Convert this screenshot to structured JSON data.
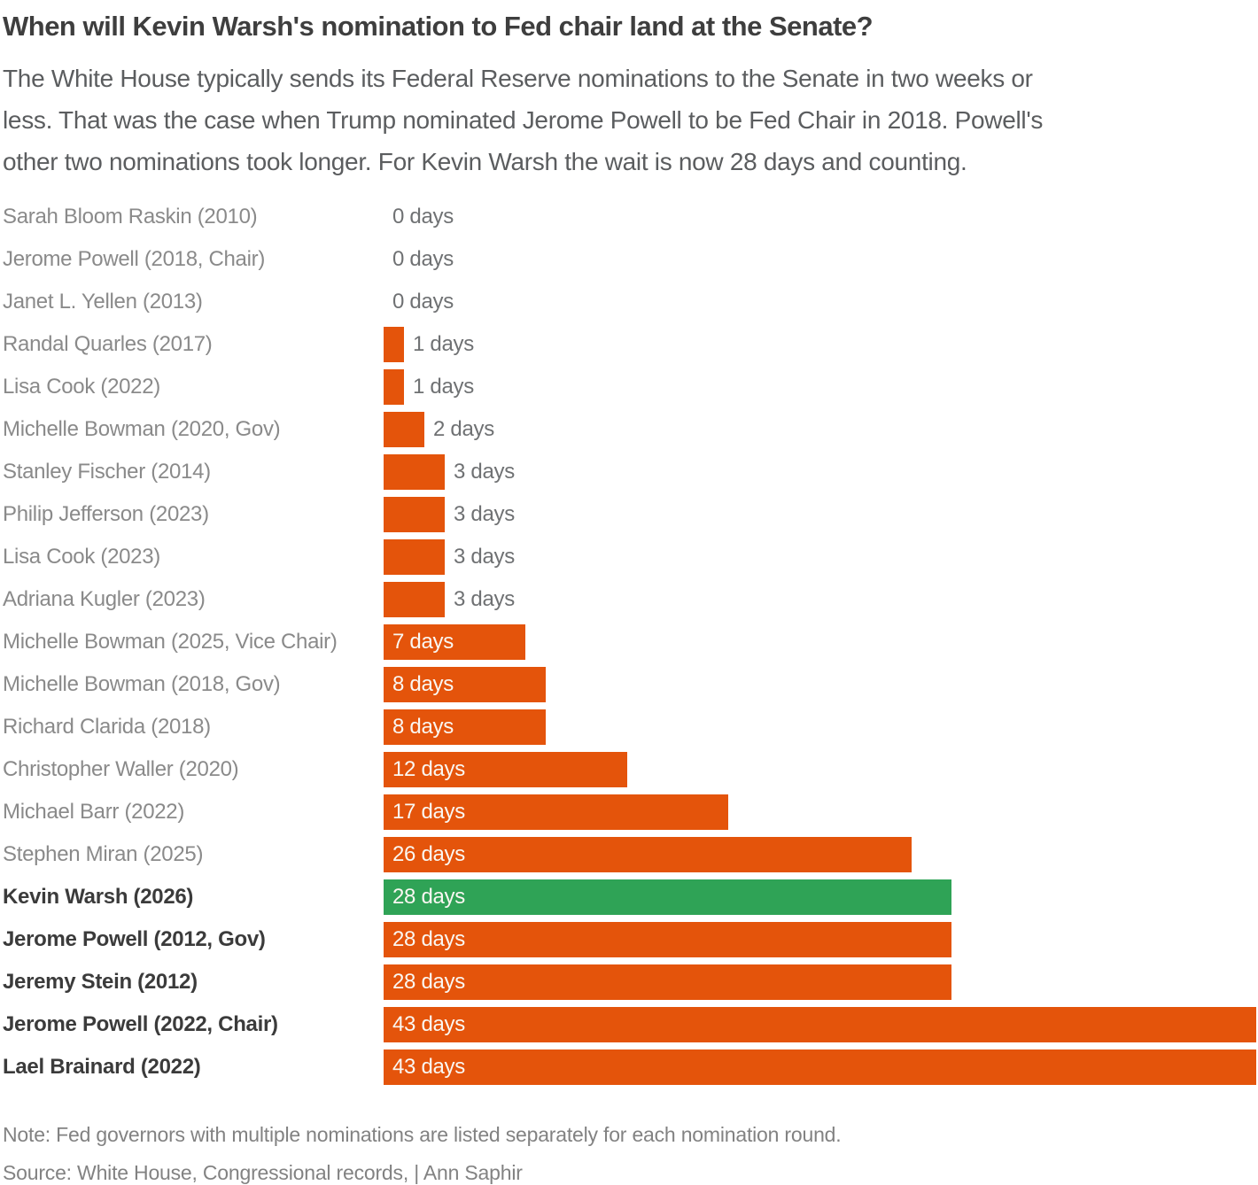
{
  "header": {
    "title": "When will Kevin Warsh's nomination to Fed chair land at the Senate?",
    "subtitle_lines": [
      "The White House typically sends its Federal Reserve nominations to the Senate in two weeks or",
      "less. That was the case when Trump nominated Jerome Powell to be Fed Chair in 2018. Powell's",
      "other two nominations took longer. For Kevin Warsh the wait is now 28 days and counting."
    ]
  },
  "chart_data": {
    "type": "bar",
    "orientation": "horizontal",
    "title": "When will Kevin Warsh's nomination to Fed chair land at the Senate?",
    "xlabel": "",
    "ylabel": "",
    "unit": "days",
    "xlim": [
      0,
      43
    ],
    "grid": false,
    "legend": "none",
    "colors": {
      "default": "#e4540b",
      "highlight": "#2fa356"
    },
    "inside_label_min_days": 7,
    "categories": [
      "Sarah Bloom Raskin (2010)",
      "Jerome Powell (2018, Chair)",
      "Janet L. Yellen (2013)",
      "Randal Quarles (2017)",
      "Lisa Cook (2022)",
      "Michelle Bowman (2020, Gov)",
      "Stanley Fischer (2014)",
      "Philip Jefferson (2023)",
      "Lisa Cook (2023)",
      "Adriana Kugler (2023)",
      "Michelle Bowman (2025, Vice Chair)",
      "Michelle Bowman (2018, Gov)",
      "Richard Clarida (2018)",
      "Christopher Waller (2020)",
      "Michael Barr (2022)",
      "Stephen Miran (2025)",
      "Kevin Warsh (2026)",
      "Jerome Powell (2012, Gov)",
      "Jeremy Stein (2012)",
      "Jerome Powell (2022, Chair)",
      "Lael Brainard (2022)"
    ],
    "values": [
      0,
      0,
      0,
      1,
      1,
      2,
      3,
      3,
      3,
      3,
      7,
      8,
      8,
      12,
      17,
      26,
      28,
      28,
      28,
      43,
      43
    ],
    "rows": [
      {
        "label": "Sarah Bloom Raskin (2010)",
        "days": 0,
        "display": "0 days",
        "bold": false,
        "highlight": false
      },
      {
        "label": "Jerome Powell (2018, Chair)",
        "days": 0,
        "display": "0 days",
        "bold": false,
        "highlight": false
      },
      {
        "label": "Janet L. Yellen (2013)",
        "days": 0,
        "display": "0 days",
        "bold": false,
        "highlight": false
      },
      {
        "label": "Randal Quarles (2017)",
        "days": 1,
        "display": "1 days",
        "bold": false,
        "highlight": false
      },
      {
        "label": "Lisa Cook (2022)",
        "days": 1,
        "display": "1 days",
        "bold": false,
        "highlight": false
      },
      {
        "label": "Michelle Bowman (2020, Gov)",
        "days": 2,
        "display": "2 days",
        "bold": false,
        "highlight": false
      },
      {
        "label": "Stanley Fischer (2014)",
        "days": 3,
        "display": "3 days",
        "bold": false,
        "highlight": false
      },
      {
        "label": "Philip Jefferson (2023)",
        "days": 3,
        "display": "3 days",
        "bold": false,
        "highlight": false
      },
      {
        "label": "Lisa Cook (2023)",
        "days": 3,
        "display": "3 days",
        "bold": false,
        "highlight": false
      },
      {
        "label": "Adriana Kugler (2023)",
        "days": 3,
        "display": "3 days",
        "bold": false,
        "highlight": false
      },
      {
        "label": "Michelle Bowman (2025, Vice Chair)",
        "days": 7,
        "display": "7 days",
        "bold": false,
        "highlight": false
      },
      {
        "label": "Michelle Bowman (2018, Gov)",
        "days": 8,
        "display": "8 days",
        "bold": false,
        "highlight": false
      },
      {
        "label": "Richard Clarida (2018)",
        "days": 8,
        "display": "8 days",
        "bold": false,
        "highlight": false
      },
      {
        "label": "Christopher Waller (2020)",
        "days": 12,
        "display": "12 days",
        "bold": false,
        "highlight": false
      },
      {
        "label": "Michael Barr (2022)",
        "days": 17,
        "display": "17 days",
        "bold": false,
        "highlight": false
      },
      {
        "label": "Stephen Miran (2025)",
        "days": 26,
        "display": "26 days",
        "bold": false,
        "highlight": false
      },
      {
        "label": "Kevin Warsh (2026)",
        "days": 28,
        "display": "28 days",
        "bold": true,
        "highlight": true
      },
      {
        "label": "Jerome Powell (2012, Gov)",
        "days": 28,
        "display": "28 days",
        "bold": true,
        "highlight": false
      },
      {
        "label": "Jeremy Stein (2012)",
        "days": 28,
        "display": "28 days",
        "bold": true,
        "highlight": false
      },
      {
        "label": "Jerome Powell (2022, Chair)",
        "days": 43,
        "display": "43 days",
        "bold": true,
        "highlight": false
      },
      {
        "label": "Lael Brainard (2022)",
        "days": 43,
        "display": "43 days",
        "bold": true,
        "highlight": false
      }
    ]
  },
  "footer": {
    "note": "Note: Fed governors with multiple nominations are listed separately for each nomination round.",
    "source": "Source: White House, Congressional records,  | Ann Saphir"
  }
}
